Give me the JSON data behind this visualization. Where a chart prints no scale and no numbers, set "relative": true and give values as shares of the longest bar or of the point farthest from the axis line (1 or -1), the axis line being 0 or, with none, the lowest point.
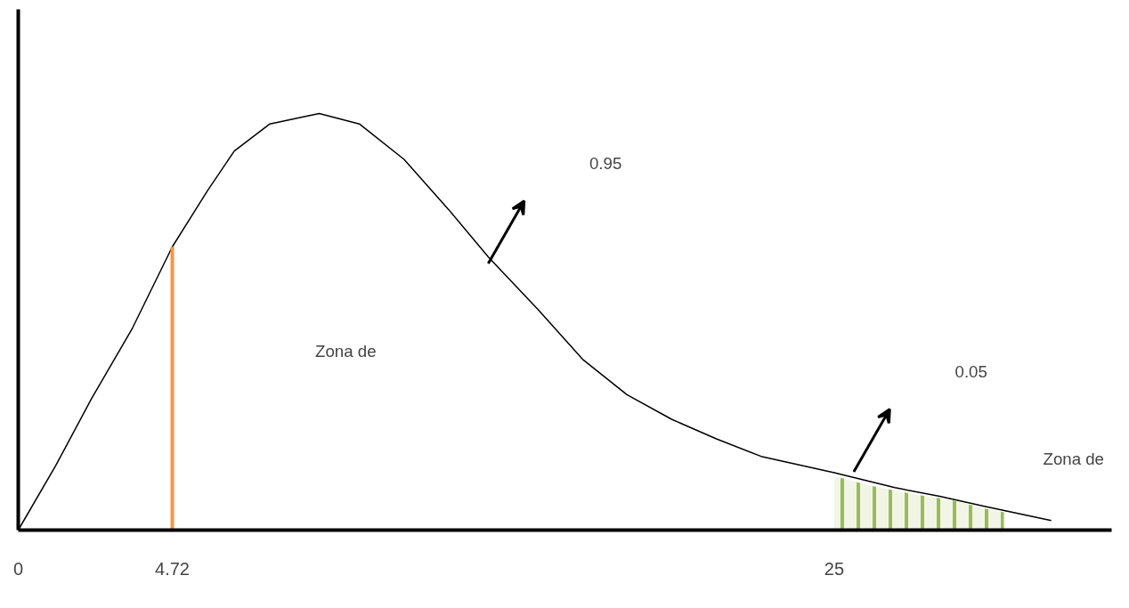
{
  "chart_data": {
    "type": "line",
    "relative": true,
    "x": [
      0,
      1.15,
      2.24,
      3.5,
      4.72,
      5.8,
      6.62,
      7.71,
      9.22,
      10.45,
      11.82,
      13.18,
      14.41,
      15.92,
      17.29,
      18.65,
      20.02,
      21.39,
      22.76,
      25,
      26.86,
      28.23,
      29.6,
      31.65
    ],
    "series": [
      {
        "color": "#000000",
        "values": [
          0,
          0.155,
          0.315,
          0.485,
          0.68,
          0.815,
          0.91,
          0.975,
          1,
          0.975,
          0.89,
          0.77,
          0.655,
          0.53,
          0.41,
          0.325,
          0.266,
          0.219,
          0.177,
          0.138,
          0.102,
          0.081,
          0.057,
          0.023
        ]
      },
      {
        "type": "area",
        "color": "#9bbb59",
        "x": [
          25,
          25.6,
          26.2,
          26.9,
          27.7,
          28.6,
          29.6,
          30.2
        ],
        "values": [
          0.13,
          0.117,
          0.105,
          0.094,
          0.083,
          0.072,
          0.052,
          0.043
        ]
      }
    ],
    "xlim": [
      0,
      33.5
    ],
    "xticks": [
      0,
      4.72,
      25
    ],
    "ref_lines": [
      {
        "axis": "x",
        "value": 4.72,
        "color": "#f79646"
      }
    ],
    "annotations": [
      "0.95",
      "Zona de",
      "0.05",
      "Zona de"
    ],
    "grid": false,
    "marker": "none",
    "line_style": "solid"
  }
}
